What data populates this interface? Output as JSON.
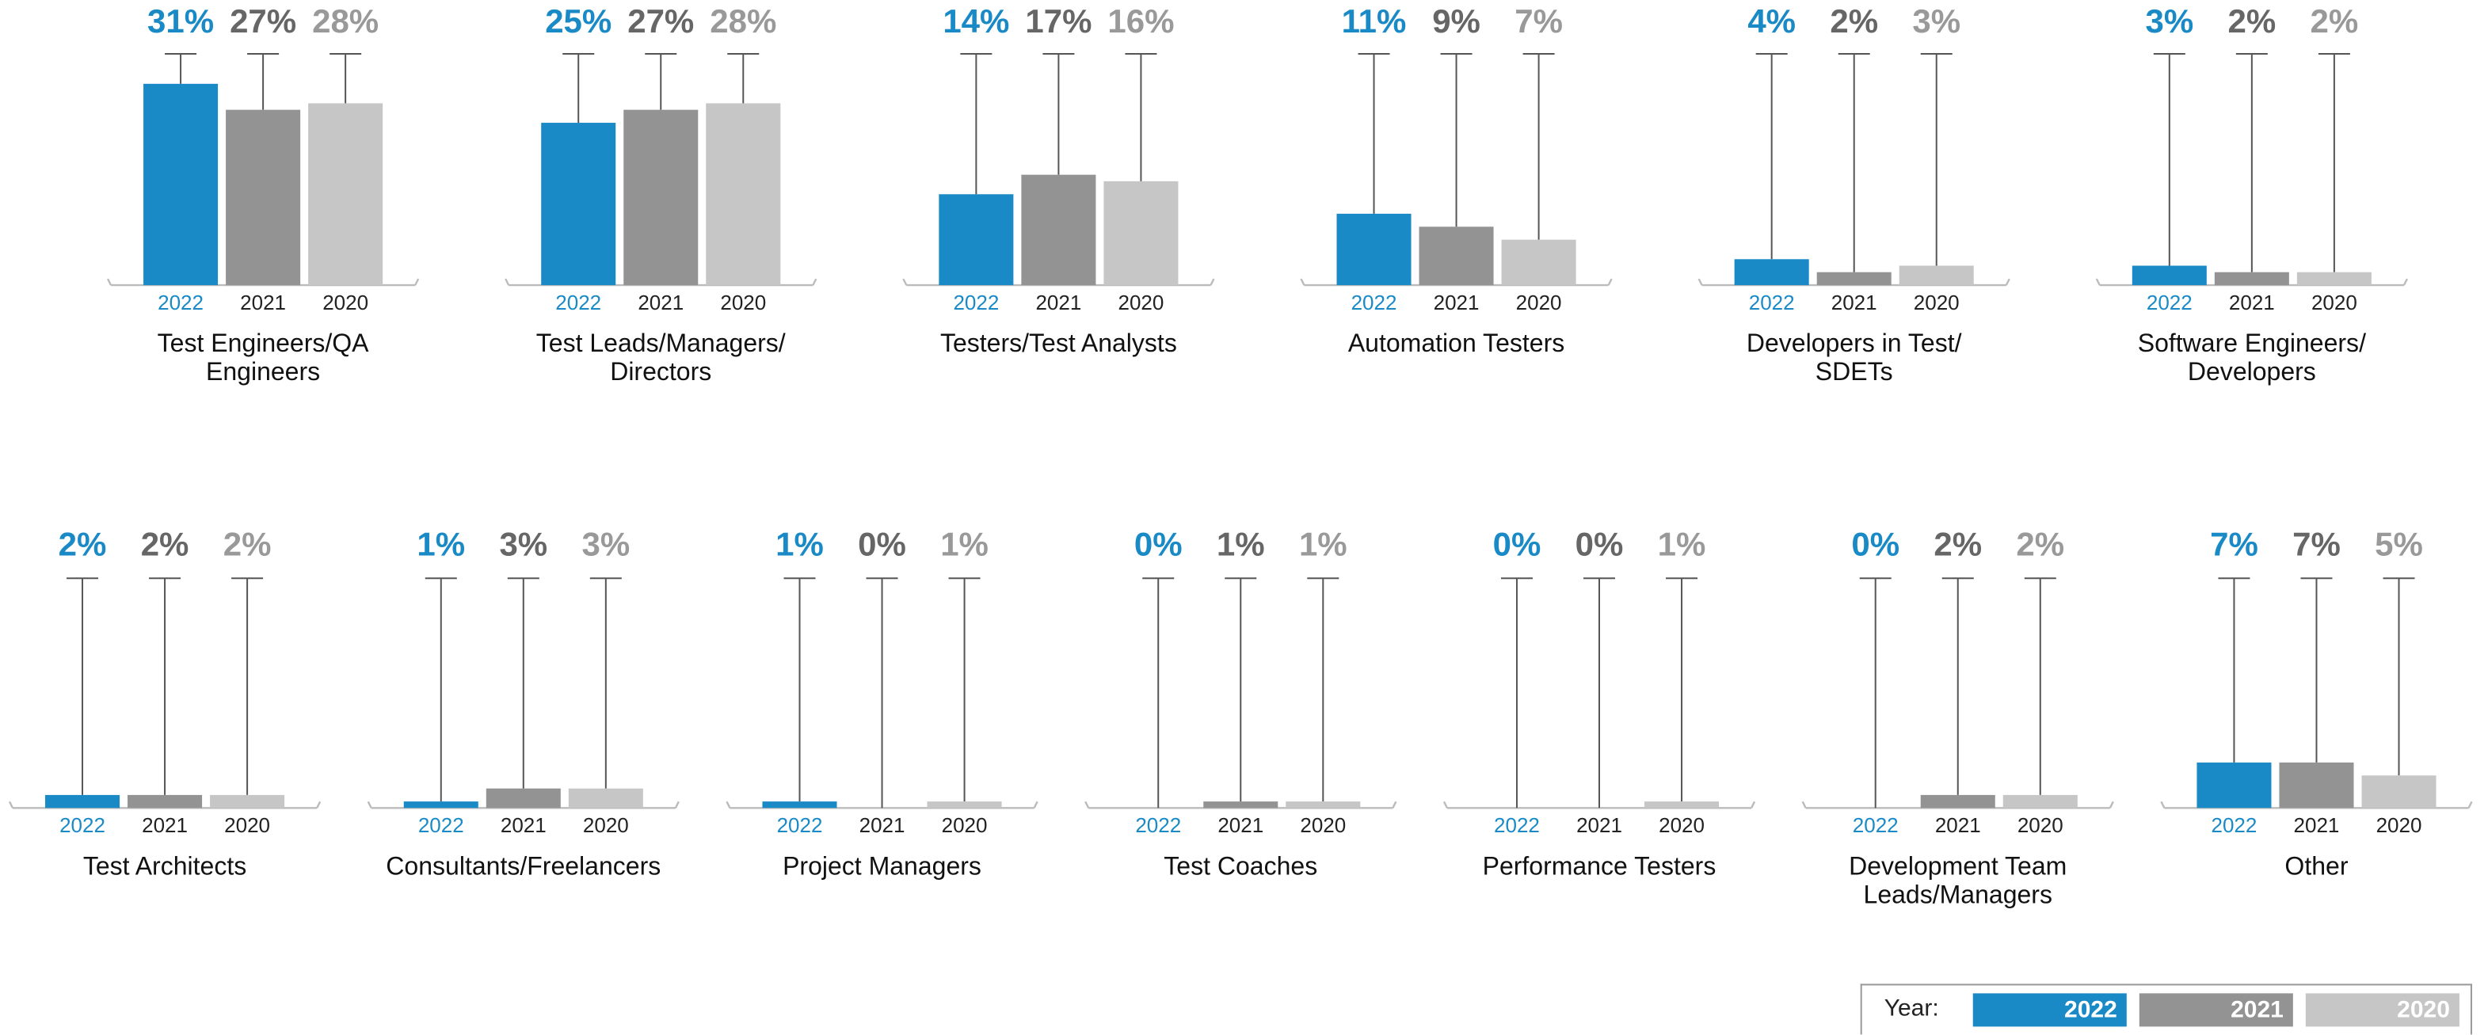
{
  "chart_data": [
    {
      "type": "bar",
      "title": "Test Engineers/QA\nEngineers",
      "categories": [
        "2022",
        "2021",
        "2020"
      ],
      "values": [
        31,
        27,
        28
      ],
      "value_labels": [
        "31%",
        "27%",
        "28%"
      ]
    },
    {
      "type": "bar",
      "title": "Test Leads/Managers/\nDirectors",
      "categories": [
        "2022",
        "2021",
        "2020"
      ],
      "values": [
        25,
        27,
        28
      ],
      "value_labels": [
        "25%",
        "27%",
        "28%"
      ]
    },
    {
      "type": "bar",
      "title": "Testers/Test Analysts",
      "categories": [
        "2022",
        "2021",
        "2020"
      ],
      "values": [
        14,
        17,
        16
      ],
      "value_labels": [
        "14%",
        "17%",
        "16%"
      ]
    },
    {
      "type": "bar",
      "title": "Automation Testers",
      "categories": [
        "2022",
        "2021",
        "2020"
      ],
      "values": [
        11,
        9,
        7
      ],
      "value_labels": [
        "11%",
        "9%",
        "7%"
      ]
    },
    {
      "type": "bar",
      "title": "Developers in Test/\nSDETs",
      "categories": [
        "2022",
        "2021",
        "2020"
      ],
      "values": [
        4,
        2,
        3
      ],
      "value_labels": [
        "4%",
        "2%",
        "3%"
      ]
    },
    {
      "type": "bar",
      "title": "Software Engineers/\nDevelopers",
      "categories": [
        "2022",
        "2021",
        "2020"
      ],
      "values": [
        3,
        2,
        2
      ],
      "value_labels": [
        "3%",
        "2%",
        "2%"
      ]
    },
    {
      "type": "bar",
      "title": "Test Architects",
      "categories": [
        "2022",
        "2021",
        "2020"
      ],
      "values": [
        2,
        2,
        2
      ],
      "value_labels": [
        "2%",
        "2%",
        "2%"
      ]
    },
    {
      "type": "bar",
      "title": "Consultants/Freelancers",
      "categories": [
        "2022",
        "2021",
        "2020"
      ],
      "values": [
        1,
        3,
        3
      ],
      "value_labels": [
        "1%",
        "3%",
        "3%"
      ]
    },
    {
      "type": "bar",
      "title": "Project Managers",
      "categories": [
        "2022",
        "2021",
        "2020"
      ],
      "values": [
        1,
        0,
        1
      ],
      "value_labels": [
        "1%",
        "0%",
        "1%"
      ]
    },
    {
      "type": "bar",
      "title": "Test Coaches",
      "categories": [
        "2022",
        "2021",
        "2020"
      ],
      "values": [
        0,
        1,
        1
      ],
      "value_labels": [
        "0%",
        "1%",
        "1%"
      ]
    },
    {
      "type": "bar",
      "title": "Performance Testers",
      "categories": [
        "2022",
        "2021",
        "2020"
      ],
      "values": [
        0,
        0,
        1
      ],
      "value_labels": [
        "0%",
        "0%",
        "1%"
      ]
    },
    {
      "type": "bar",
      "title": "Development Team\nLeads/Managers",
      "categories": [
        "2022",
        "2021",
        "2020"
      ],
      "values": [
        0,
        2,
        2
      ],
      "value_labels": [
        "0%",
        "2%",
        "2%"
      ]
    },
    {
      "type": "bar",
      "title": "Other",
      "categories": [
        "2022",
        "2021",
        "2020"
      ],
      "values": [
        7,
        7,
        5
      ],
      "value_labels": [
        "7%",
        "7%",
        "5%"
      ]
    }
  ],
  "legend": {
    "title": "Year:",
    "items": [
      {
        "name": "2022",
        "color": "#1a8ac6"
      },
      {
        "name": "2021",
        "color": "#939393"
      },
      {
        "name": "2020",
        "color": "#c6c6c6"
      }
    ]
  }
}
